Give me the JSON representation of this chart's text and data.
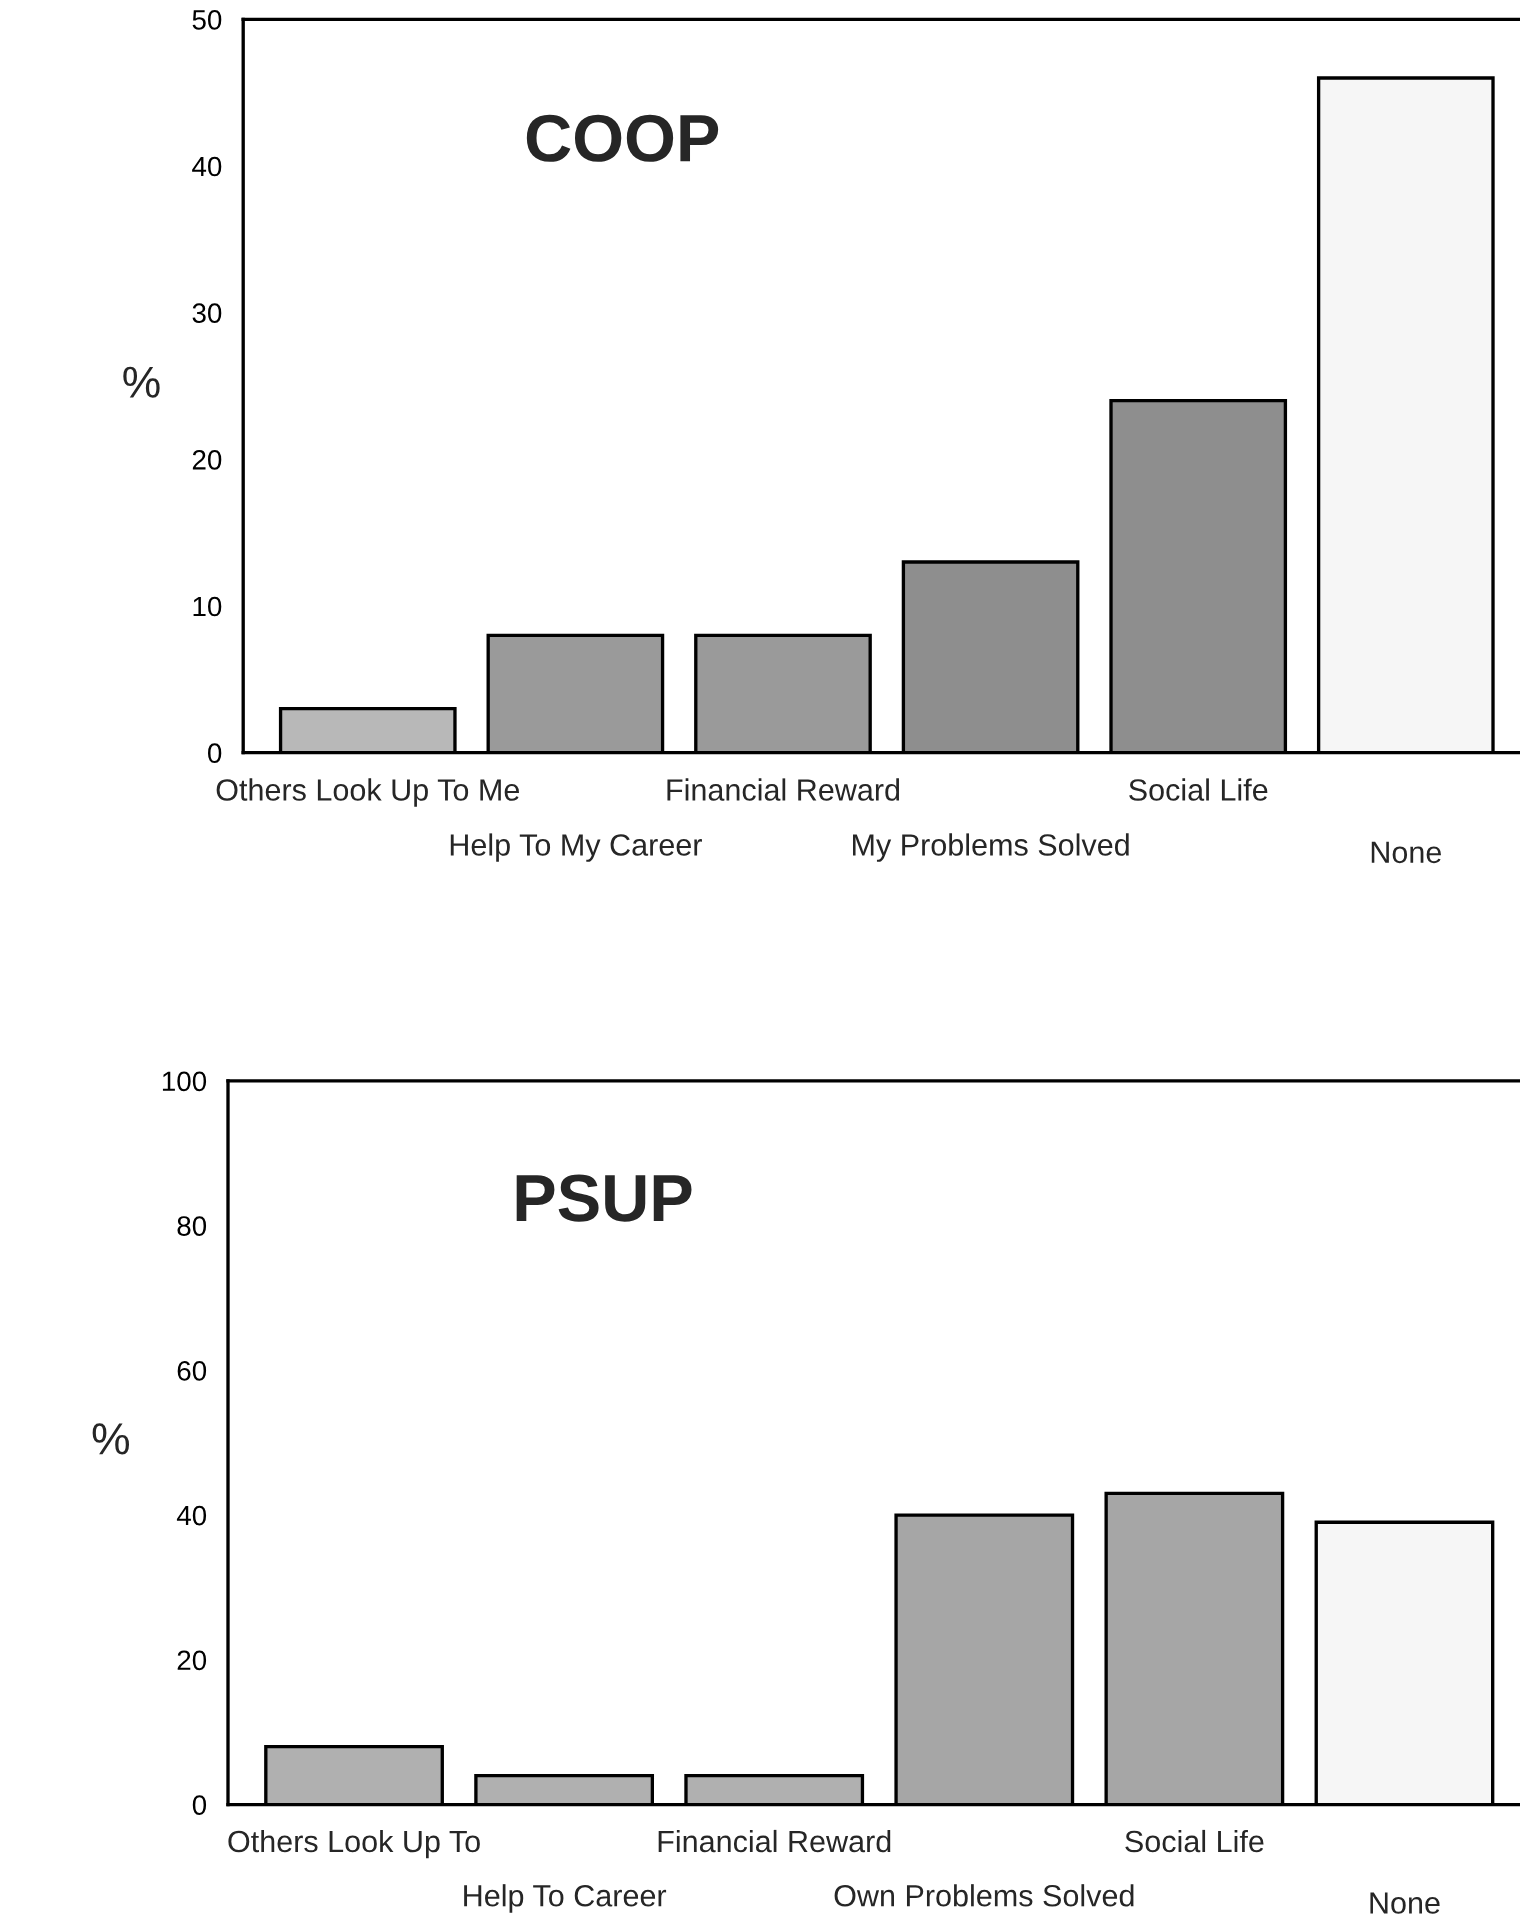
{
  "chart_data": [
    {
      "type": "bar",
      "title": "COOP",
      "ylabel": "%",
      "categories": [
        "Others Look Up To Me",
        "Help To My Career",
        "Financial Reward",
        "My Problems Solved",
        "Social Life",
        "None"
      ],
      "values": [
        3,
        8,
        8,
        13,
        24,
        46
      ],
      "colors": [
        "#b8b8b8",
        "#9a9a9a",
        "#9a9a9a",
        "#8e8e8e",
        "#8e8e8e",
        "#f6f6f6"
      ],
      "ylim": [
        0,
        50
      ],
      "yticks": [
        0,
        10,
        20,
        30,
        40,
        50
      ],
      "grid": false,
      "legend": false
    },
    {
      "type": "bar",
      "title": "PSUP",
      "ylabel": "%",
      "categories": [
        "Others Look Up To",
        "Help To Career",
        "Financial Reward",
        "Own Problems Solved",
        "Social Life",
        "None"
      ],
      "values": [
        8,
        4,
        4,
        40,
        43,
        39
      ],
      "colors": [
        "#b0b0b0",
        "#b0b0b0",
        "#b0b0b0",
        "#a6a6a6",
        "#a6a6a6",
        "#f6f6f6"
      ],
      "ylim": [
        0,
        100
      ],
      "yticks": [
        0,
        20,
        40,
        60,
        80,
        100
      ],
      "grid": false,
      "legend": false
    }
  ]
}
